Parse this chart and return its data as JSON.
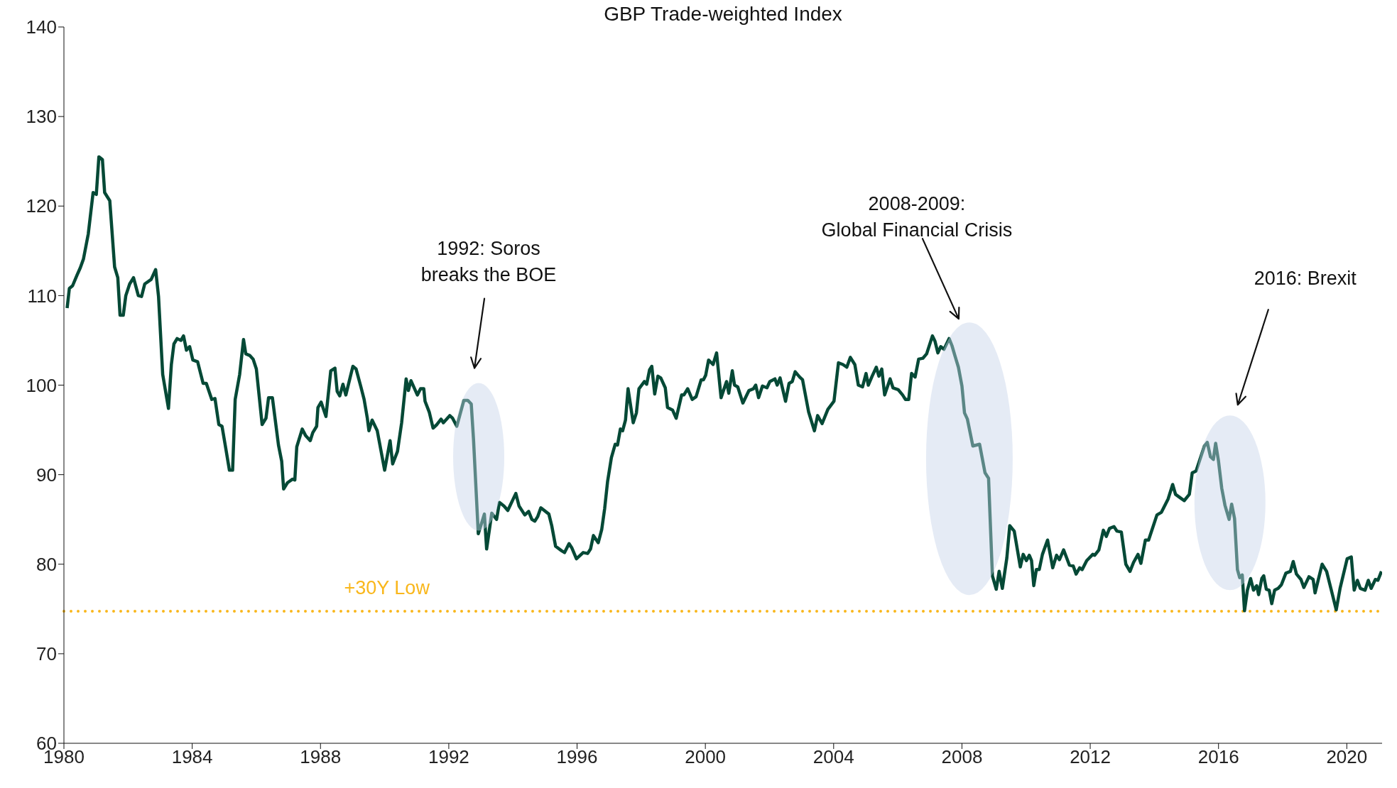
{
  "chart_data": {
    "type": "line",
    "title": "GBP Trade-weighted Index",
    "x": [
      1980.1,
      1980.17,
      1980.27,
      1980.41,
      1980.51,
      1980.61,
      1980.76,
      1980.91,
      1981.01,
      1981.09,
      1981.2,
      1981.27,
      1981.43,
      1981.58,
      1981.68,
      1981.75,
      1981.85,
      1981.93,
      1982.05,
      1982.17,
      1982.32,
      1982.42,
      1982.52,
      1982.72,
      1982.86,
      1982.95,
      1983.08,
      1983.26,
      1983.35,
      1983.43,
      1983.53,
      1983.65,
      1983.73,
      1983.82,
      1983.92,
      1984.02,
      1984.17,
      1984.34,
      1984.44,
      1984.61,
      1984.71,
      1984.83,
      1984.93,
      1985.03,
      1985.16,
      1985.26,
      1985.34,
      1985.48,
      1985.6,
      1985.67,
      1985.8,
      1985.9,
      1986.0,
      1986.18,
      1986.3,
      1986.38,
      1986.5,
      1986.69,
      1986.79,
      1986.85,
      1986.97,
      1987.13,
      1987.2,
      1987.26,
      1987.43,
      1987.53,
      1987.68,
      1987.76,
      1987.88,
      1987.92,
      1988.02,
      1988.17,
      1988.32,
      1988.45,
      1988.52,
      1988.6,
      1988.7,
      1988.79,
      1989.01,
      1989.11,
      1989.26,
      1989.36,
      1989.46,
      1989.51,
      1989.61,
      1989.77,
      1990.0,
      1990.17,
      1990.25,
      1990.4,
      1990.53,
      1990.67,
      1990.74,
      1990.82,
      1991.02,
      1991.12,
      1991.22,
      1991.26,
      1991.39,
      1991.51,
      1991.63,
      1991.76,
      1991.83,
      1992.03,
      1992.12,
      1992.25,
      1992.47,
      1992.59,
      1992.7,
      1992.77,
      1992.92,
      1993.11,
      1993.18,
      1993.34,
      1993.49,
      1993.58,
      1993.72,
      1993.84,
      1994.09,
      1994.19,
      1994.37,
      1994.49,
      1994.59,
      1994.68,
      1994.77,
      1994.87,
      1995.12,
      1995.21,
      1995.33,
      1995.52,
      1995.61,
      1995.75,
      1995.84,
      1995.98,
      1996.19,
      1996.33,
      1996.42,
      1996.51,
      1996.66,
      1996.77,
      1996.86,
      1996.95,
      1997.07,
      1997.19,
      1997.26,
      1997.35,
      1997.42,
      1997.51,
      1997.59,
      1997.75,
      1997.85,
      1997.93,
      1998.1,
      1998.17,
      1998.26,
      1998.33,
      1998.42,
      1998.52,
      1998.61,
      1998.75,
      1998.82,
      1998.98,
      1999.09,
      1999.26,
      1999.33,
      1999.45,
      1999.59,
      1999.71,
      1999.87,
      1999.94,
      2000.01,
      2000.1,
      2000.24,
      2000.35,
      2000.49,
      2000.66,
      2000.73,
      2000.84,
      2000.91,
      2001.01,
      2001.17,
      2001.36,
      2001.5,
      2001.57,
      2001.66,
      2001.78,
      2001.92,
      2002.01,
      2002.17,
      2002.24,
      2002.33,
      2002.5,
      2002.61,
      2002.71,
      2002.8,
      2002.94,
      2003.03,
      2003.22,
      2003.4,
      2003.5,
      2003.64,
      2003.82,
      2004.01,
      2004.15,
      2004.29,
      2004.41,
      2004.52,
      2004.66,
      2004.77,
      2004.9,
      2005.01,
      2005.08,
      2005.2,
      2005.33,
      2005.41,
      2005.5,
      2005.59,
      2005.76,
      2005.85,
      2006.01,
      2006.15,
      2006.24,
      2006.34,
      2006.43,
      2006.54,
      2006.65,
      2006.78,
      2006.9,
      2007.08,
      2007.16,
      2007.25,
      2007.34,
      2007.44,
      2007.6,
      2007.69,
      2007.78,
      2007.89,
      2008.0,
      2008.08,
      2008.17,
      2008.34,
      2008.55,
      2008.72,
      2008.83,
      2008.95,
      2009.07,
      2009.16,
      2009.26,
      2009.4,
      2009.49,
      2009.63,
      2009.82,
      2009.91,
      2010.01,
      2010.1,
      2010.17,
      2010.24,
      2010.32,
      2010.41,
      2010.51,
      2010.67,
      2010.83,
      2010.95,
      2011.04,
      2011.17,
      2011.35,
      2011.47,
      2011.56,
      2011.67,
      2011.75,
      2011.89,
      2012.08,
      2012.14,
      2012.27,
      2012.41,
      2012.5,
      2012.6,
      2012.74,
      2012.83,
      2012.97,
      2013.11,
      2013.24,
      2013.35,
      2013.49,
      2013.58,
      2013.72,
      2013.82,
      2014.08,
      2014.22,
      2014.43,
      2014.57,
      2014.66,
      2014.85,
      2014.93,
      2015.09,
      2015.18,
      2015.3,
      2015.42,
      2015.56,
      2015.65,
      2015.75,
      2015.84,
      2015.91,
      2016.0,
      2016.1,
      2016.2,
      2016.33,
      2016.41,
      2016.5,
      2016.59,
      2016.66,
      2016.74,
      2016.81,
      2016.9,
      2017.0,
      2017.09,
      2017.19,
      2017.25,
      2017.35,
      2017.41,
      2017.49,
      2017.58,
      2017.66,
      2017.75,
      2017.86,
      2017.96,
      2018.1,
      2018.24,
      2018.33,
      2018.43,
      2018.57,
      2018.66,
      2018.82,
      2018.95,
      2019.01,
      2019.23,
      2019.37,
      2019.51,
      2019.67,
      2019.79,
      2020.01,
      2020.14,
      2020.23,
      2020.33,
      2020.42,
      2020.57,
      2020.67,
      2020.76,
      2020.89,
      2020.97,
      2021.08
    ],
    "values": [
      108.6,
      110.8,
      111.1,
      112.3,
      113.1,
      114.1,
      116.9,
      121.5,
      121.3,
      125.5,
      125.2,
      121.5,
      120.6,
      113.2,
      112,
      107.8,
      107.8,
      110,
      111.3,
      112,
      110,
      109.9,
      111.3,
      111.8,
      112.9,
      109.9,
      101.2,
      97.4,
      102.3,
      104.6,
      105.2,
      105,
      105.5,
      103.9,
      104.3,
      102.8,
      102.6,
      100.2,
      100.2,
      98.4,
      98.5,
      95.6,
      95.4,
      93.3,
      90.5,
      90.5,
      98.4,
      101.2,
      105.1,
      103.5,
      103.3,
      102.9,
      101.8,
      95.6,
      96.3,
      98.6,
      98.6,
      93.3,
      91.5,
      88.4,
      89.1,
      89.5,
      89.4,
      93.1,
      95.1,
      94.4,
      93.8,
      94.7,
      95.4,
      97.5,
      98.1,
      96.5,
      101.6,
      101.9,
      99.3,
      98.8,
      100.1,
      98.9,
      102.1,
      101.8,
      99.8,
      98.4,
      96.3,
      94.9,
      96.1,
      94.9,
      90.5,
      93.8,
      91.2,
      92.6,
      95.8,
      100.7,
      99.4,
      100.5,
      98.9,
      99.6,
      99.6,
      98.2,
      97,
      95.2,
      95.6,
      96.2,
      95.8,
      96.6,
      96.3,
      95.4,
      98.3,
      98.3,
      97.9,
      94,
      83.4,
      85.6,
      81.7,
      85.7,
      85,
      86.9,
      86.5,
      86,
      87.9,
      86.5,
      85.5,
      85.9,
      85,
      84.8,
      85.3,
      86.3,
      85.6,
      84.3,
      82,
      81.5,
      81.3,
      82.3,
      81.8,
      80.6,
      81.3,
      81.2,
      81.7,
      83.2,
      82.4,
      83.9,
      86.2,
      89.2,
      91.9,
      93.4,
      93.3,
      95.1,
      94.9,
      96.1,
      99.6,
      95.8,
      96.9,
      99.6,
      100.4,
      100.1,
      101.7,
      102.1,
      99,
      101,
      100.8,
      99.7,
      97.5,
      97.2,
      96.3,
      98.9,
      98.9,
      99.6,
      98.4,
      98.7,
      100.6,
      100.6,
      101.1,
      102.8,
      102.3,
      103.6,
      98.6,
      100.4,
      99.1,
      101.6,
      100,
      99.8,
      98,
      99.4,
      99.6,
      100,
      98.6,
      99.9,
      99.7,
      100.4,
      100.7,
      100,
      100.8,
      98.2,
      100.2,
      100.4,
      101.5,
      100.9,
      100.6,
      97,
      94.9,
      96.6,
      95.7,
      97.3,
      98.2,
      102.5,
      102.3,
      102,
      103.1,
      102.3,
      100,
      99.8,
      101.3,
      100,
      101,
      102,
      101,
      101.8,
      98.9,
      100.7,
      99.7,
      99.5,
      98.9,
      98.4,
      98.4,
      101.3,
      100.9,
      102.9,
      103,
      103.5,
      105.5,
      104.9,
      103.6,
      104.3,
      104,
      105.2,
      104.4,
      103.3,
      102,
      99.9,
      96.9,
      96.2,
      93.2,
      93.4,
      90.2,
      89.6,
      78.7,
      77.2,
      79.2,
      77.3,
      80.7,
      84.3,
      83.7,
      79.7,
      81.1,
      80.4,
      81,
      80.4,
      77.6,
      79.4,
      79.4,
      81.1,
      82.7,
      79.6,
      81,
      80.5,
      81.6,
      79.9,
      79.8,
      78.9,
      79.6,
      79.4,
      80.4,
      81.1,
      81,
      81.6,
      83.8,
      83.1,
      84,
      84.2,
      83.7,
      83.6,
      80,
      79.2,
      80.2,
      81.1,
      80.1,
      82.7,
      82.7,
      85.5,
      85.8,
      87.3,
      88.9,
      87.8,
      87.3,
      87.1,
      87.8,
      90.2,
      90.4,
      91.7,
      93.2,
      93.6,
      92,
      91.7,
      93.5,
      91.5,
      88.5,
      86.6,
      85,
      86.7,
      85.1,
      79.4,
      78.5,
      78.8,
      74.8,
      77.1,
      78.4,
      77.1,
      77.6,
      76.6,
      78.4,
      78.7,
      77.2,
      77.1,
      75.6,
      77.1,
      77.3,
      77.7,
      79,
      79.2,
      80.3,
      78.9,
      78.3,
      77.4,
      78.6,
      78.3,
      76.8,
      80,
      79.2,
      77.2,
      74.9,
      77.3,
      80.6,
      80.8,
      77.1,
      78.2,
      77.3,
      77.1,
      78.2,
      77.3,
      78.3,
      78.2,
      79.2
    ],
    "color": "#054936",
    "xlim": [
      1980,
      2021.1
    ],
    "xticks": [
      1980,
      1984,
      1988,
      1992,
      1996,
      2000,
      2004,
      2008,
      2012,
      2016,
      2020
    ],
    "ylim": [
      60,
      140
    ],
    "yticks": [
      60,
      70,
      80,
      90,
      100,
      110,
      120,
      130,
      140
    ],
    "grid": false,
    "legend": false,
    "marker": "none",
    "line_style": "solid",
    "ref_lines": [
      {
        "axis": "y",
        "value": 74.75,
        "label": "+30Y Low",
        "color": "#f9b71c",
        "line_style": "dotted"
      }
    ],
    "annotations": [
      "1992: Soros\nbreaks the BOE",
      "2008-2009:\nGlobal Financial Crisis",
      "2016: Brexit"
    ]
  }
}
